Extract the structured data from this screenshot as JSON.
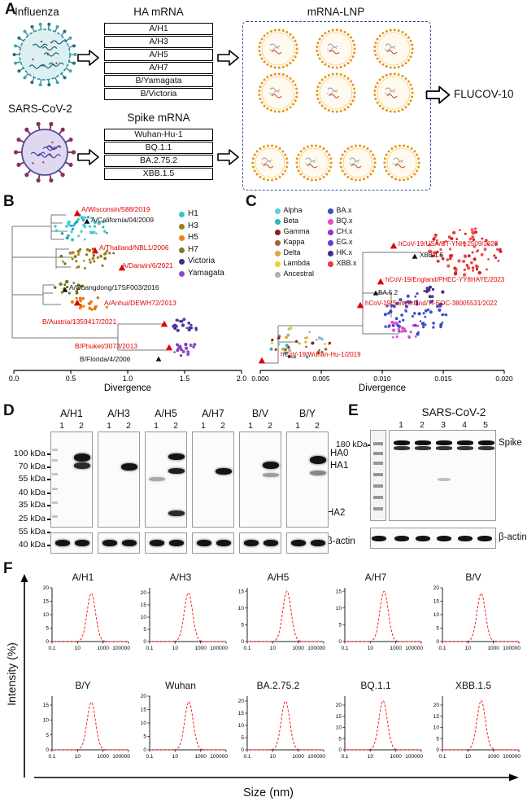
{
  "figure": {
    "panel_a": {
      "label": "A",
      "influenza_label": "Influenza",
      "ha_mrna_label": "HA mRNA",
      "mrna_lnp_label": "mRNA-LNP",
      "ha_strains": [
        "A/H1",
        "A/H3",
        "A/H5",
        "A/H7",
        "B/Yamagata",
        "B/Victoria"
      ],
      "sars_label": "SARS-CoV-2",
      "spike_mrna_label": "Spike mRNA",
      "spike_strains": [
        "Wuhan-Hu-1",
        "BQ.1.1",
        "BA.2.75.2",
        "XBB.1.5"
      ],
      "product_label": "FLUCOV-10"
    },
    "panel_b": {
      "label": "B",
      "xlabel": "Divergence",
      "xticks": [
        "0.0",
        "0.5",
        "1.0",
        "1.5",
        "2.0"
      ],
      "legend": [
        {
          "label": "H1",
          "color": "#35c4cc"
        },
        {
          "label": "H3",
          "color": "#9c7a1e"
        },
        {
          "label": "H5",
          "color": "#f08010"
        },
        {
          "label": "H7",
          "color": "#7d7d20"
        },
        {
          "label": "Victoria",
          "color": "#3f2b96"
        },
        {
          "label": "Yamagata",
          "color": "#8d4bc8"
        }
      ],
      "annotations": [
        {
          "text": "A/Wisconsin/588/2019",
          "color": "#e00000"
        },
        {
          "text": "A/California/04/2009",
          "color": "#111111"
        },
        {
          "text": "A/Thailand/NBL1/2006",
          "color": "#e00000"
        },
        {
          "text": "A/Darwin/6/2021",
          "color": "#e00000"
        },
        {
          "text": "A/Guangdong/17SF003/2016",
          "color": "#111111"
        },
        {
          "text": "A/Anhui/DEWH72/2013",
          "color": "#e00000"
        },
        {
          "text": "B/Austria/1359417/2021",
          "color": "#e00000"
        },
        {
          "text": "B/Phuket/3073/2013",
          "color": "#e00000"
        },
        {
          "text": "B/Florida/4/2006",
          "color": "#111111"
        }
      ]
    },
    "panel_c": {
      "label": "C",
      "xlabel": "Divergence",
      "xticks": [
        "0.000",
        "0.005",
        "0.010",
        "0.015",
        "0.020"
      ],
      "legend_col1": [
        {
          "label": "Alpha",
          "color": "#62c8e8"
        },
        {
          "label": "Beta",
          "color": "#2bb5b8"
        },
        {
          "label": "Gamma",
          "color": "#8b2020"
        },
        {
          "label": "Kappa",
          "color": "#9c6b30"
        },
        {
          "label": "Delta",
          "color": "#e2a93b"
        },
        {
          "label": "Lambda",
          "color": "#e8d23b"
        },
        {
          "label": "Ancestral",
          "color": "#b0b0b0"
        }
      ],
      "legend_col2": [
        {
          "label": "BA.x",
          "color": "#3d50c3"
        },
        {
          "label": "BQ.x",
          "color": "#e84bd0"
        },
        {
          "label": "CH.x",
          "color": "#9b30d0"
        },
        {
          "label": "EG.x",
          "color": "#6a3bd8"
        },
        {
          "label": "HK.x",
          "color": "#4a2b8a"
        },
        {
          "label": "XBB.x",
          "color": "#e83b3b"
        }
      ],
      "annotations": [
        {
          "text": "hCoV-19/USA/CT-YNH-2509/2023",
          "color": "#e00000"
        },
        {
          "text": "XBB.1.5",
          "color": "#111111"
        },
        {
          "text": "hCoV-19/England/PHEC-YY8HAYE/2023",
          "color": "#e00000"
        },
        {
          "text": "BA.5.2",
          "color": "#111111"
        },
        {
          "text": "hCoV-19/Switzerland/TI-EOC-38005531/2022",
          "color": "#e00000"
        },
        {
          "text": "hCoV-19/Wuhan-Hu-1/2019",
          "color": "#e00000"
        }
      ]
    },
    "panel_d": {
      "label": "D",
      "groups": [
        "A/H1",
        "A/H3",
        "A/H5",
        "A/H7",
        "B/V",
        "B/Y"
      ],
      "lane_numbers": [
        "1",
        "2"
      ],
      "mw_labels": [
        "100 kDa",
        "70 kDa",
        "55 kDa",
        "40 kDa",
        "35 kDa",
        "25 kDa"
      ],
      "actin_mw_labels": [
        "55 kDa",
        "40 kDa"
      ],
      "ha0_label": "HA0",
      "ha1_label": "HA1",
      "ha2_label": "HA2",
      "actin_label": "β-actin"
    },
    "panel_e": {
      "label": "E",
      "title": "SARS-CoV-2",
      "lane_numbers": [
        "1",
        "2",
        "3",
        "4",
        "5"
      ],
      "mw_label": "180 kDa",
      "spike_label": "Spike",
      "actin_label": "β-actin"
    },
    "panel_f": {
      "label": "F",
      "ylabel": "Intensity (%)",
      "xlabel": "Size (nm)"
    }
  },
  "chart_data": [
    {
      "type": "line",
      "title": "A/H1",
      "xscale": "log",
      "xlim": [
        0.1,
        100000
      ],
      "x_tick_labels": [
        "0.1",
        "10",
        "1000",
        "100000"
      ],
      "ylim": [
        0,
        20
      ],
      "yticks": [
        0,
        5,
        10,
        15,
        20
      ],
      "peak_size_nm": 120,
      "peak_intensity_pct": 18,
      "xlabel": "Size (nm)",
      "ylabel": "Intensity (%)",
      "series_color": "#ff1a1a",
      "line_style": "dashed"
    },
    {
      "type": "line",
      "title": "A/H3",
      "xscale": "log",
      "xlim": [
        0.1,
        100000
      ],
      "x_tick_labels": [
        "0.1",
        "10",
        "1000",
        "100000"
      ],
      "ylim": [
        0,
        22
      ],
      "yticks": [
        0,
        5,
        10,
        15,
        20
      ],
      "peak_size_nm": 110,
      "peak_intensity_pct": 20,
      "xlabel": "Size (nm)",
      "ylabel": "Intensity (%)",
      "series_color": "#ff1a1a",
      "line_style": "dashed"
    },
    {
      "type": "line",
      "title": "A/H5",
      "xscale": "log",
      "xlim": [
        0.1,
        100000
      ],
      "x_tick_labels": [
        "0.1",
        "10",
        "1000",
        "100000"
      ],
      "ylim": [
        0,
        16
      ],
      "yticks": [
        0,
        5,
        10,
        15
      ],
      "peak_size_nm": 130,
      "peak_intensity_pct": 15,
      "xlabel": "Size (nm)",
      "ylabel": "Intensity (%)",
      "series_color": "#ff1a1a",
      "line_style": "dashed"
    },
    {
      "type": "line",
      "title": "A/H7",
      "xscale": "log",
      "xlim": [
        0.1,
        100000
      ],
      "x_tick_labels": [
        "0.1",
        "10",
        "1000",
        "100000"
      ],
      "ylim": [
        0,
        16
      ],
      "yticks": [
        0,
        5,
        10,
        15
      ],
      "peak_size_nm": 120,
      "peak_intensity_pct": 15,
      "xlabel": "Size (nm)",
      "ylabel": "Intensity (%)",
      "series_color": "#ff1a1a",
      "line_style": "dashed"
    },
    {
      "type": "line",
      "title": "B/V",
      "xscale": "log",
      "xlim": [
        0.1,
        100000
      ],
      "x_tick_labels": [
        "0.1",
        "10",
        "1000",
        "100000"
      ],
      "ylim": [
        0,
        20
      ],
      "yticks": [
        0,
        5,
        10,
        15,
        20
      ],
      "peak_size_nm": 110,
      "peak_intensity_pct": 18,
      "xlabel": "Size (nm)",
      "ylabel": "Intensity (%)",
      "series_color": "#ff1a1a",
      "line_style": "dashed"
    },
    {
      "type": "line",
      "title": "B/Y",
      "xscale": "log",
      "xlim": [
        0.1,
        100000
      ],
      "x_tick_labels": [
        "0.1",
        "10",
        "1000",
        "100000"
      ],
      "ylim": [
        0,
        18
      ],
      "yticks": [
        0,
        5,
        10,
        15
      ],
      "peak_size_nm": 120,
      "peak_intensity_pct": 16,
      "xlabel": "Size (nm)",
      "ylabel": "Intensity (%)",
      "series_color": "#ff1a1a",
      "line_style": "dashed"
    },
    {
      "type": "line",
      "title": "Wuhan",
      "xscale": "log",
      "xlim": [
        0.1,
        100000
      ],
      "x_tick_labels": [
        "0.1",
        "10",
        "1000",
        "100000"
      ],
      "ylim": [
        0,
        20
      ],
      "yticks": [
        0,
        5,
        10,
        15,
        20
      ],
      "peak_size_nm": 120,
      "peak_intensity_pct": 18,
      "xlabel": "Size (nm)",
      "ylabel": "Intensity (%)",
      "series_color": "#ff1a1a",
      "line_style": "dashed"
    },
    {
      "type": "line",
      "title": "BA.2.75.2",
      "xscale": "log",
      "xlim": [
        0.1,
        100000
      ],
      "x_tick_labels": [
        "0.1",
        "10",
        "1000",
        "100000"
      ],
      "ylim": [
        0,
        22
      ],
      "yticks": [
        0,
        5,
        10,
        15,
        20
      ],
      "peak_size_nm": 100,
      "peak_intensity_pct": 20,
      "xlabel": "Size (nm)",
      "ylabel": "Intensity (%)",
      "series_color": "#ff1a1a",
      "line_style": "dashed"
    },
    {
      "type": "line",
      "title": "BQ.1.1",
      "xscale": "log",
      "xlim": [
        0.1,
        100000
      ],
      "x_tick_labels": [
        "0.1",
        "10",
        "1000",
        "100000"
      ],
      "ylim": [
        0,
        24
      ],
      "yticks": [
        0,
        5,
        10,
        15,
        20
      ],
      "peak_size_nm": 100,
      "peak_intensity_pct": 22,
      "xlabel": "Size (nm)",
      "ylabel": "Intensity (%)",
      "series_color": "#ff1a1a",
      "line_style": "dashed"
    },
    {
      "type": "line",
      "title": "XBB.1.5",
      "xscale": "log",
      "xlim": [
        0.1,
        100000
      ],
      "x_tick_labels": [
        "0.1",
        "10",
        "1000",
        "100000"
      ],
      "ylim": [
        0,
        24
      ],
      "yticks": [
        0,
        5,
        10,
        15,
        20
      ],
      "peak_size_nm": 110,
      "peak_intensity_pct": 22,
      "xlabel": "Size (nm)",
      "ylabel": "Intensity (%)",
      "series_color": "#ff1a1a",
      "line_style": "dashed"
    }
  ]
}
